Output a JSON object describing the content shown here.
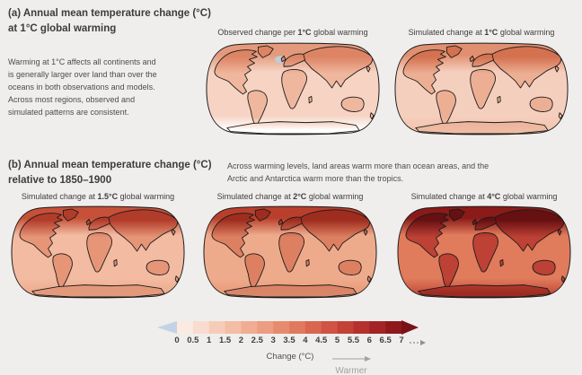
{
  "page": {
    "background": "#efeeec"
  },
  "section_a": {
    "title": "(a) Annual mean temperature change (°C)\nat 1°C global warming",
    "description": "Warming at 1°C affects all continents and\nis generally larger over land than over the\noceans in both observations and models.\nAcross most regions, observed and\nsimulated patterns are consistent."
  },
  "section_b": {
    "title": "(b) Annual mean temperature change (°C)\nrelative to 1850–1900",
    "description": "Across warming levels, land areas warm more than ocean areas, and the\nArctic and Antarctica warm more than the tropics."
  },
  "chart_data": {
    "type": "heatmap",
    "title": "Annual mean temperature change (°C) at different global warming levels",
    "projection": "Robinson world maps",
    "blue_patch_color": "#b9cfe2",
    "panels": [
      {
        "id": "observed-1c",
        "title_prefix": "Observed change per ",
        "title_bold": "1°C",
        "title_suffix": " global warming",
        "row": "a",
        "blue_patch": true,
        "antarctica_no_data": true,
        "colors": {
          "ocean_north": "#e39a7c",
          "ocean_mid": "#f6d3c3",
          "ocean_south": "#ffffff",
          "land_north": "#dd8465",
          "land_mid": "#efb79d",
          "land_south": "#ffffff"
        }
      },
      {
        "id": "simulated-1c",
        "title_prefix": "Simulated change at ",
        "title_bold": "1°C",
        "title_suffix": " global warming",
        "row": "a",
        "blue_patch": false,
        "antarctica_no_data": false,
        "colors": {
          "ocean_north": "#e08f70",
          "ocean_mid": "#f5cfbd",
          "ocean_south": "#f2c5b0",
          "land_north": "#d4714f",
          "land_mid": "#edaf94",
          "land_south": "#eebba2"
        }
      },
      {
        "id": "simulated-1-5c",
        "title_prefix": "Simulated change at ",
        "title_bold": "1.5°C",
        "title_suffix": " global warming",
        "row": "b",
        "blue_patch": false,
        "antarctica_no_data": false,
        "colors": {
          "ocean_north": "#c65038",
          "ocean_mid": "#f2bba2",
          "ocean_south": "#eeab8d",
          "land_north": "#b23c2a",
          "land_mid": "#e69577",
          "land_south": "#e29a7c"
        }
      },
      {
        "id": "simulated-2c",
        "title_prefix": "Simulated change at ",
        "title_bold": "2°C",
        "title_suffix": " global warming",
        "row": "b",
        "blue_patch": false,
        "antarctica_no_data": false,
        "colors": {
          "ocean_north": "#b93f2c",
          "ocean_mid": "#eeab8c",
          "ocean_south": "#e99c7a",
          "land_north": "#9f2d1f",
          "land_mid": "#dd8061",
          "land_south": "#d8866a"
        }
      },
      {
        "id": "simulated-4c",
        "title_prefix": "Simulated change at ",
        "title_bold": "4°C",
        "title_suffix": " global warming",
        "row": "b",
        "blue_patch": false,
        "antarctica_no_data": false,
        "colors": {
          "ocean_north": "#8a1b18",
          "ocean_mid": "#e07b5c",
          "ocean_south": "#c7503c",
          "land_north": "#671012",
          "land_mid": "#bd4134",
          "land_south": "#9c2b23"
        }
      }
    ],
    "colorbar": {
      "label": "Change (°C)",
      "direction_label": "Warmer",
      "ticks": [
        "0",
        "0.5",
        "1",
        "1.5",
        "2",
        "2.5",
        "3",
        "3.5",
        "4",
        "4.5",
        "5",
        "5.5",
        "6",
        "6.5",
        "7"
      ],
      "tick_values": [
        0,
        0.5,
        1,
        1.5,
        2,
        2.5,
        3,
        3.5,
        4,
        4.5,
        5,
        5.5,
        6,
        6.5,
        7
      ],
      "segment_colors": [
        "#fbeae2",
        "#f9dccf",
        "#f6ccb9",
        "#f3bda6",
        "#f0ad93",
        "#ec9d82",
        "#e78b6f",
        "#e1795f",
        "#d9664f",
        "#d05343",
        "#c44138",
        "#b5312d",
        "#a32424",
        "#8e191d"
      ],
      "left_arrow_color": "#c2d3e5",
      "right_arrow_color": "#7a1217",
      "continues_beyond_scale": true
    }
  }
}
